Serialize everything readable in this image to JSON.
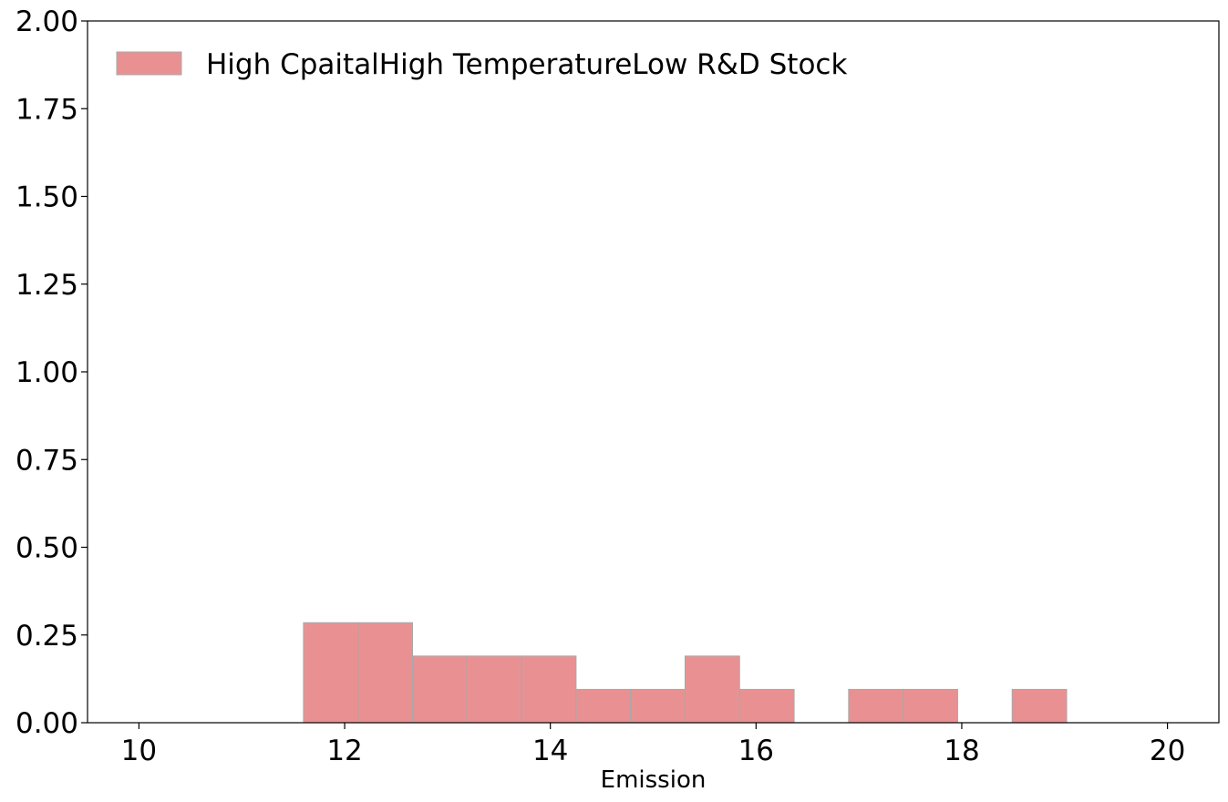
{
  "chart_data": {
    "type": "histogram",
    "xlabel": "Emission",
    "ylabel": "",
    "xlim": [
      9.5,
      20.5
    ],
    "ylim": [
      0,
      2.0
    ],
    "xticks": [
      "10",
      "12",
      "14",
      "16",
      "18",
      "20"
    ],
    "yticks": [
      "0.00",
      "0.25",
      "0.50",
      "0.75",
      "1.00",
      "1.25",
      "1.50",
      "1.75",
      "2.00"
    ],
    "grid": false,
    "legend_position": "top-left",
    "series": [
      {
        "name": "High CpaitalHigh TemperatureLow R&D Stock",
        "color": "#e99192",
        "edge_color": "#a8a8a8",
        "bins": [
          {
            "x0": 11.6,
            "x1": 12.13,
            "y": 0.285
          },
          {
            "x0": 12.13,
            "x1": 12.66,
            "y": 0.285
          },
          {
            "x0": 12.66,
            "x1": 13.19,
            "y": 0.19
          },
          {
            "x0": 13.19,
            "x1": 13.72,
            "y": 0.19
          },
          {
            "x0": 13.72,
            "x1": 14.25,
            "y": 0.19
          },
          {
            "x0": 14.25,
            "x1": 14.78,
            "y": 0.095
          },
          {
            "x0": 14.78,
            "x1": 15.31,
            "y": 0.095
          },
          {
            "x0": 15.31,
            "x1": 15.84,
            "y": 0.19
          },
          {
            "x0": 15.84,
            "x1": 16.37,
            "y": 0.095
          },
          {
            "x0": 16.37,
            "x1": 16.9,
            "y": 0.0
          },
          {
            "x0": 16.9,
            "x1": 17.43,
            "y": 0.095
          },
          {
            "x0": 17.43,
            "x1": 17.96,
            "y": 0.095
          },
          {
            "x0": 17.96,
            "x1": 18.49,
            "y": 0.0
          },
          {
            "x0": 18.49,
            "x1": 19.02,
            "y": 0.095
          }
        ]
      }
    ]
  }
}
